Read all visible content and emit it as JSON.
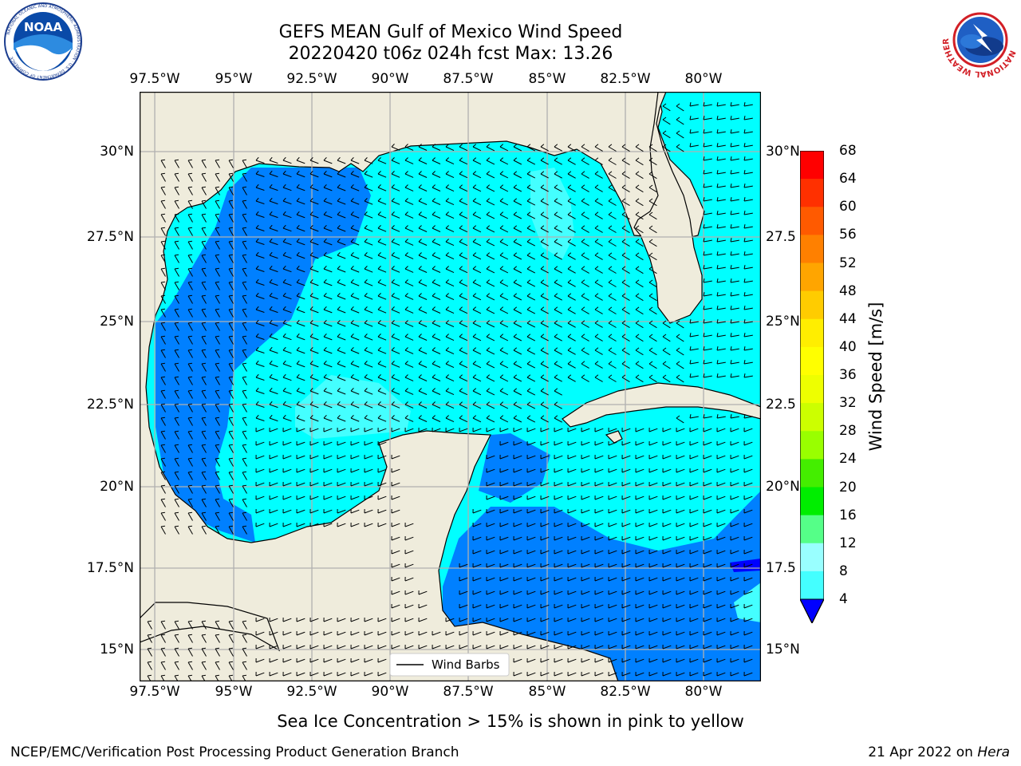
{
  "title": {
    "line1": "GEFS MEAN Gulf of Mexico Wind Speed",
    "line2": "20220420 t06z 024h fcst   Max: 13.26"
  },
  "logos": {
    "left": {
      "name": "noaa-logo",
      "text": "NOAA",
      "ring": "NATIONAL OCEANIC AND ATMOSPHERIC ADMINISTRATION · U.S. DEPARTMENT OF COMMERCE"
    },
    "right": {
      "name": "nws-logo",
      "ring": "NATIONAL WEATHER SERVICE"
    }
  },
  "map": {
    "lon_ticks": [
      "97.5°W",
      "95°W",
      "92.5°W",
      "90°W",
      "87.5°W",
      "85°W",
      "82.5°W",
      "80°W"
    ],
    "lat_ticks": [
      "30°N",
      "27.5°N",
      "25°N",
      "22.5°N",
      "20°N",
      "17.5°N",
      "15°N"
    ],
    "right_lat_ticks": [
      "30°N",
      "27.5",
      "25°N",
      "22.5",
      "20°N",
      "17.5",
      "15°N"
    ],
    "lon_range": [
      -98,
      -78.2
    ],
    "lat_range": [
      14,
      31.7
    ],
    "colors": {
      "land": "#efecdc",
      "ocean_8_12": "#00ffff",
      "ocean_12_16": "#44ffff",
      "ocean_16_20": "#99ffff",
      "ocean_4_8": "#0080ff",
      "ocean_lt4": "#0000ff"
    },
    "legend_label": "Wind Barbs"
  },
  "colorbar": {
    "label": "Wind Speed [m/s]",
    "levels": [
      "68",
      "64",
      "60",
      "56",
      "52",
      "48",
      "44",
      "40",
      "36",
      "32",
      "28",
      "24",
      "20",
      "16",
      "12",
      "8",
      "4"
    ],
    "colors": [
      "#ff0000",
      "#ff3000",
      "#ff5a00",
      "#ff8000",
      "#ffa500",
      "#ffcc00",
      "#ffee00",
      "#ffff00",
      "#eeff00",
      "#ccff00",
      "#99ff00",
      "#44ee00",
      "#00ee00",
      "#55ff88",
      "#99ffff",
      "#44ffff",
      "#00ffff",
      "#0080ff"
    ],
    "extend_color": "#0000ff"
  },
  "note": "Sea Ice Concentration > 15% is shown in pink to yellow",
  "footer": {
    "left": "NCEP/EMC/Verification Post Processing Product Generation Branch",
    "right_prefix": "21 Apr 2022 on ",
    "right_host": "Hera"
  }
}
